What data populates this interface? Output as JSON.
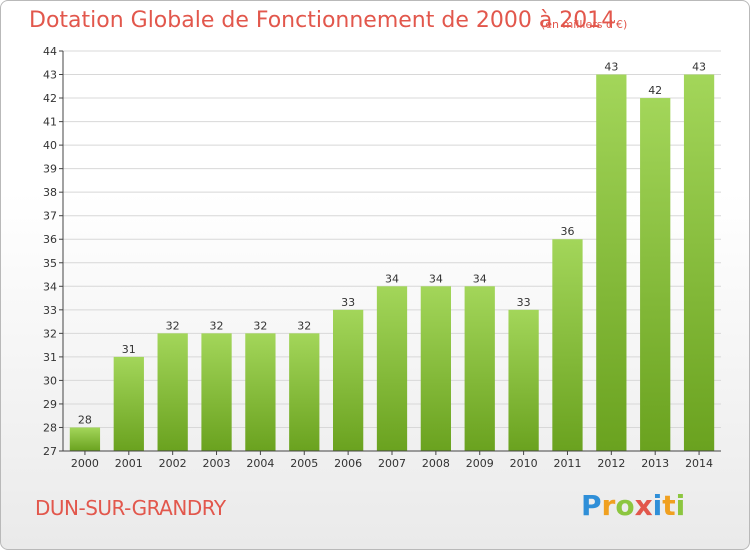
{
  "header": {
    "title": "Dotation Globale de Fonctionnement de 2000 à 2014",
    "subtitle": "(en milliers d'€)"
  },
  "commune": "DUN-SUR-GRANDRY",
  "logo": {
    "letters": [
      {
        "char": "P",
        "color": "#2f8fd8"
      },
      {
        "char": "r",
        "color": "#f0a020"
      },
      {
        "char": "o",
        "color": "#8cc63f"
      },
      {
        "char": "x",
        "color": "#e2574c"
      },
      {
        "char": "i",
        "color": "#2f8fd8"
      },
      {
        "char": "t",
        "color": "#f0a020"
      },
      {
        "char": "i",
        "color": "#8cc63f"
      }
    ]
  },
  "colors": {
    "bar_light": "#a3d65a",
    "bar_dark": "#6aa21f",
    "grid": "#d8d8d8",
    "axis": "#444444",
    "text": "#333333",
    "title": "#e2574c"
  },
  "chart_data": {
    "type": "bar",
    "categories": [
      "2000",
      "2001",
      "2002",
      "2003",
      "2004",
      "2005",
      "2006",
      "2007",
      "2008",
      "2009",
      "2010",
      "2011",
      "2012",
      "2013",
      "2014"
    ],
    "values": [
      28,
      31,
      32,
      32,
      32,
      32,
      33,
      34,
      34,
      34,
      33,
      36,
      43,
      42,
      43
    ],
    "ylim": [
      27,
      44
    ],
    "yticks": [
      27,
      28,
      29,
      30,
      31,
      32,
      33,
      34,
      35,
      36,
      37,
      38,
      39,
      40,
      41,
      42,
      43,
      44
    ],
    "grid": true,
    "data_labels": true
  }
}
